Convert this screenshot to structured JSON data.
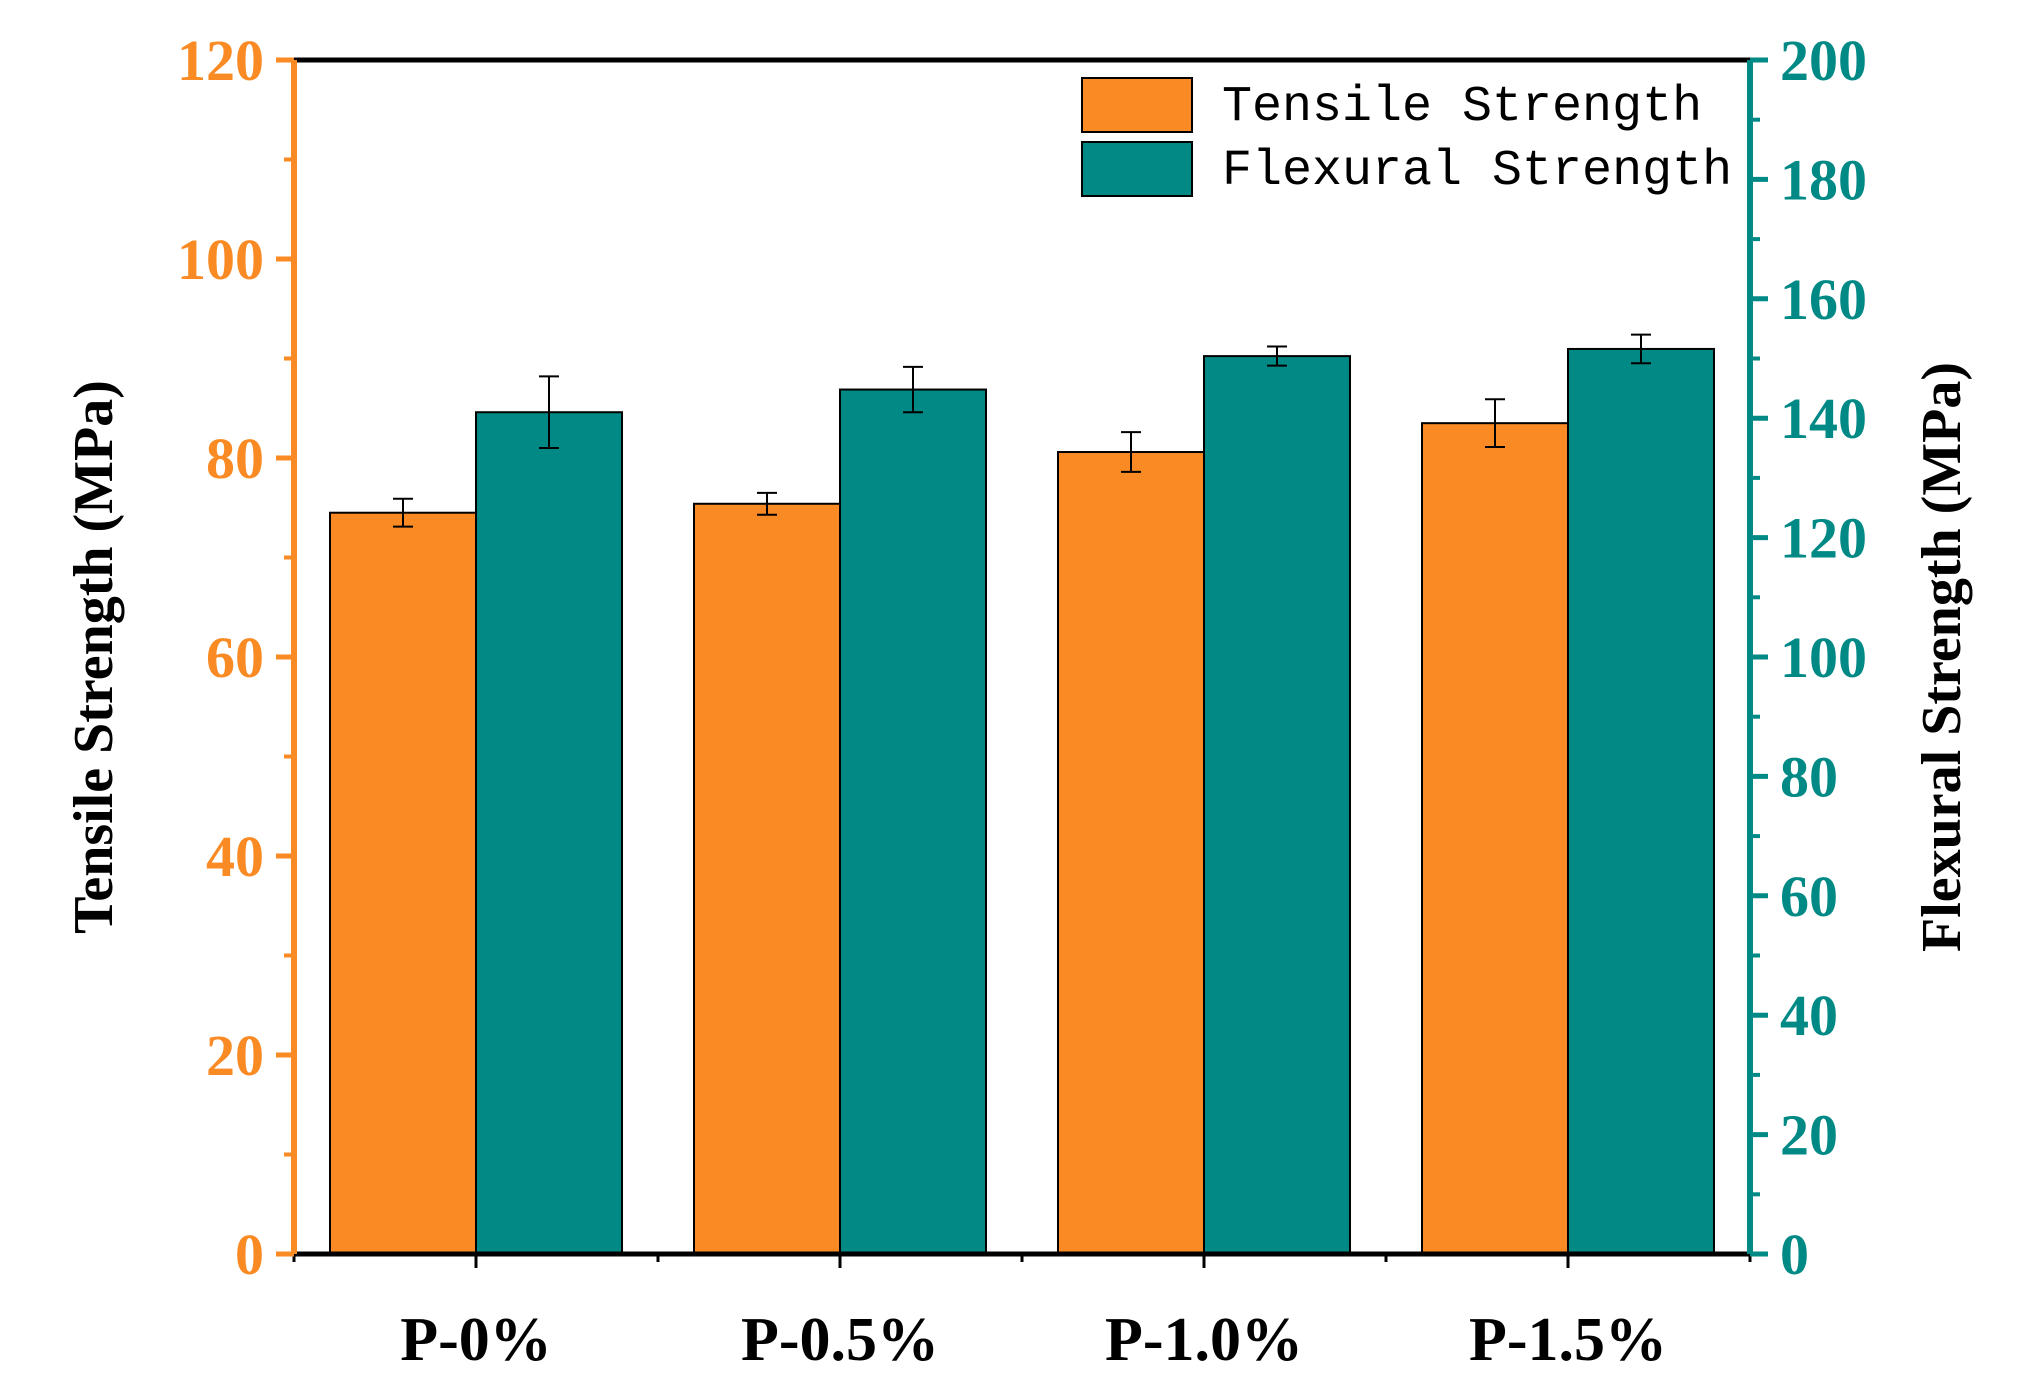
{
  "colors": {
    "tensile": "#F98A24",
    "flexural": "#008985",
    "tensile_axis": "#F98A24",
    "flexural_axis": "#008985",
    "frame": "#000000"
  },
  "chart_data": {
    "type": "bar",
    "categories": [
      "P-0%",
      "P-0.5%",
      "P-1.0%",
      "P-1.5%"
    ],
    "series": [
      {
        "name": "Tensile Strength",
        "axis": "left",
        "values": [
          74.5,
          75.4,
          80.6,
          83.5
        ],
        "errors": [
          1.4,
          1.1,
          2.0,
          2.4
        ]
      },
      {
        "name": "Flexural Strength",
        "axis": "right",
        "values": [
          141.0,
          144.8,
          150.4,
          151.6
        ],
        "errors": [
          6.0,
          3.8,
          1.6,
          2.4
        ]
      }
    ],
    "ylabel": "Tensile Strength (MPa)",
    "ylabel_right": "Flexural Strength (MPa)",
    "xlabel": "",
    "title": "",
    "ylim": [
      0,
      120
    ],
    "ylim_right": [
      0,
      200
    ],
    "yticks": [
      "0",
      "20",
      "40",
      "60",
      "80",
      "100",
      "120"
    ],
    "yticks_right": [
      "0",
      "20",
      "40",
      "60",
      "80",
      "100",
      "120",
      "140",
      "160",
      "180",
      "200"
    ],
    "legend_placement": "top-right",
    "grid": false
  }
}
